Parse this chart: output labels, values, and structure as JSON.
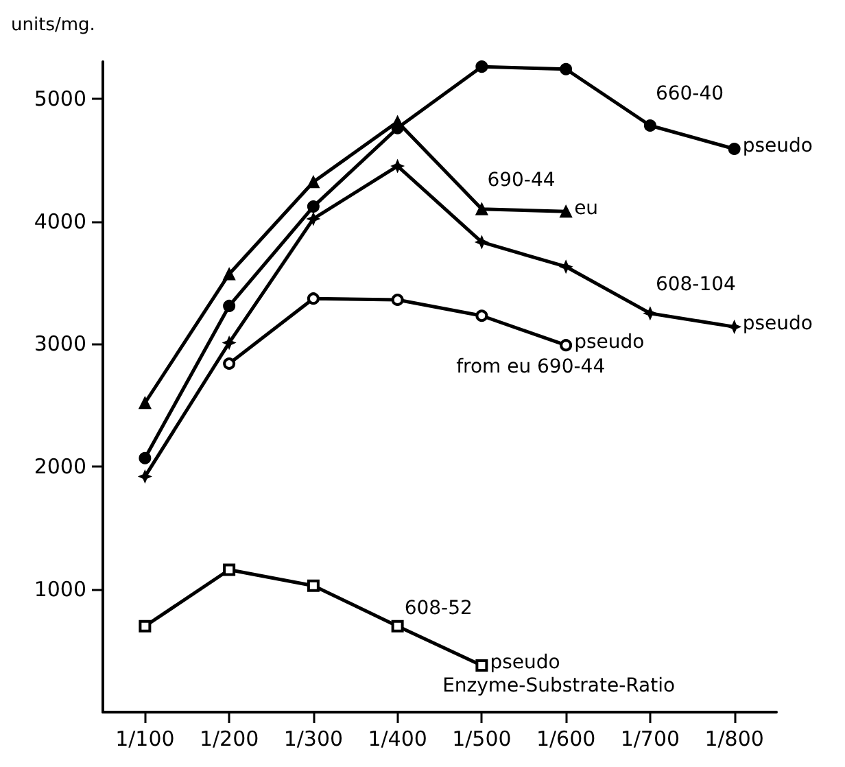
{
  "chart_data": {
    "type": "line",
    "ylabel": "units/mg.",
    "xlabel": "Enzyme-Substrate-Ratio",
    "categories": [
      "1/100",
      "1/200",
      "1/300",
      "1/400",
      "1/500",
      "1/600",
      "1/700",
      "1/800"
    ],
    "series": [
      {
        "color": "#000000",
        "marker": "circle",
        "values": [
          2070,
          3310,
          4120,
          4760,
          5260,
          5240,
          4780,
          4590
        ]
      },
      {
        "color": "#000000",
        "marker": "triangle",
        "values": [
          2520,
          3570,
          4320,
          4810,
          4100,
          4080,
          null,
          null
        ]
      },
      {
        "color": "#000000",
        "marker": "star",
        "values": [
          1920,
          3010,
          4020,
          4450,
          3830,
          3630,
          3250,
          3140
        ]
      },
      {
        "color": "#000000",
        "marker": "open-circle",
        "values": [
          null,
          2840,
          3370,
          3360,
          3230,
          2990,
          null,
          null
        ]
      },
      {
        "color": "#000000",
        "marker": "square",
        "values": [
          700,
          1160,
          1030,
          700,
          380,
          null,
          null,
          null
        ]
      }
    ],
    "ylim": [
      0,
      5300
    ],
    "yticks": [
      1000,
      2000,
      3000,
      4000,
      5000
    ],
    "grid": false,
    "line_style": "solid",
    "annotations": [
      {
        "text": "660-40",
        "x": "1/700",
        "y": 4780
      },
      {
        "text": "pseudo",
        "x": "1/800",
        "y": 4590
      },
      {
        "text": "690-44",
        "x": "1/500",
        "y": 4100
      },
      {
        "text": "eu",
        "x": "1/600",
        "y": 4080
      },
      {
        "text": "608-104",
        "x": "1/700",
        "y": 3250
      },
      {
        "text": "pseudo",
        "x": "1/800",
        "y": 3140
      },
      {
        "text": "pseudo",
        "x": "1/600",
        "y": 2990
      },
      {
        "text": "from eu 690-44",
        "x": "1/600",
        "y": 2990
      },
      {
        "text": "608-52",
        "x": "1/400",
        "y": 700
      },
      {
        "text": "pseudo",
        "x": "1/500",
        "y": 380
      }
    ]
  }
}
